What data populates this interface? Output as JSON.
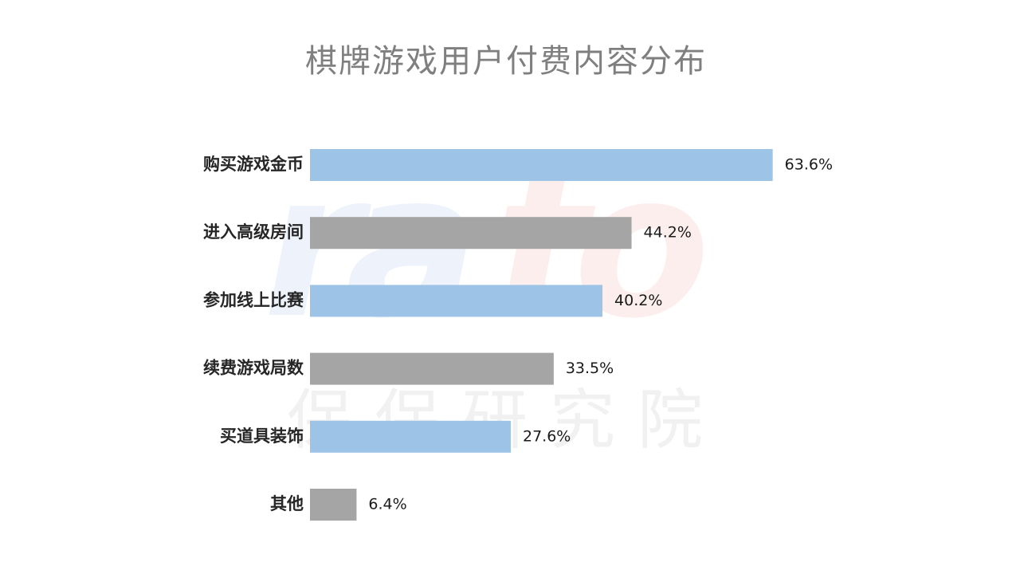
{
  "chart_data": {
    "type": "bar",
    "orientation": "horizontal",
    "title": "棋牌游戏用户付费内容分布",
    "categories": [
      "购买游戏金币",
      "进入高级房间",
      "参加线上比赛",
      "续费游戏局数",
      "买道具装饰",
      "其他"
    ],
    "values": [
      63.6,
      44.2,
      40.2,
      33.5,
      27.6,
      6.4
    ],
    "value_labels": [
      "63.6%",
      "44.2%",
      "40.2%",
      "33.5%",
      "27.6%",
      "6.4%"
    ],
    "colors": [
      "#9dc3e6",
      "#a5a5a5",
      "#9dc3e6",
      "#a5a5a5",
      "#9dc3e6",
      "#a5a5a5"
    ],
    "xlim": [
      0,
      100
    ],
    "grid": false,
    "legend": "none"
  }
}
